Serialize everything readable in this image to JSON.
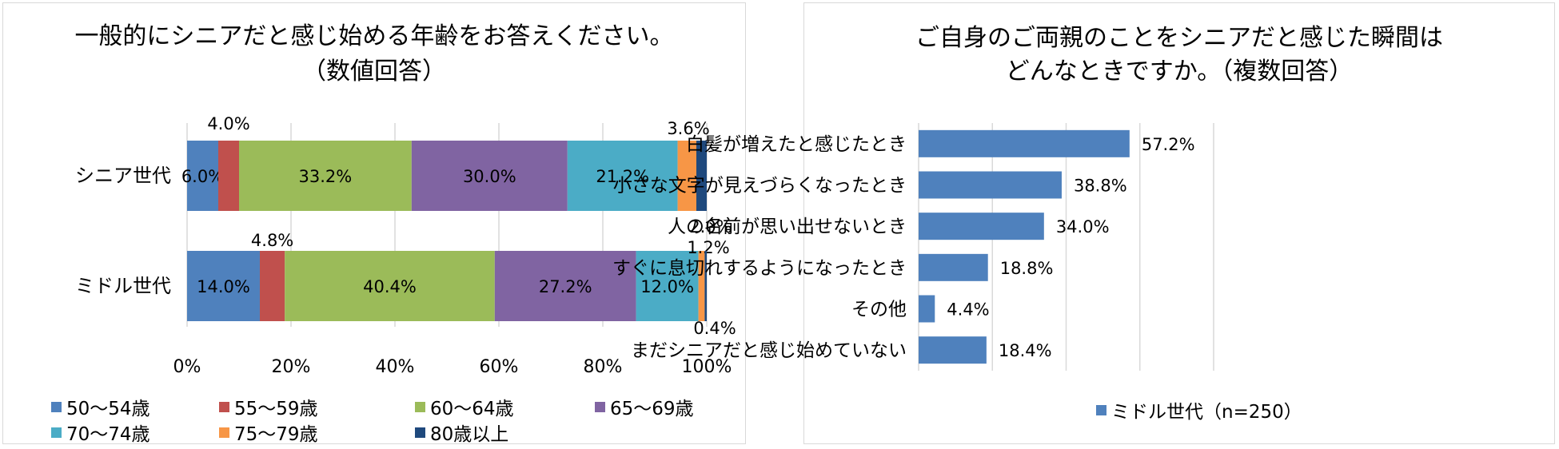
{
  "chart_data": [
    {
      "type": "bar",
      "orientation": "horizontal",
      "stacked": true,
      "title_lines": [
        "一般的にシニアだと感じ始める年齢をお答えください。",
        "（数値回答）"
      ],
      "categories": [
        "シニア世代",
        "ミドル世代"
      ],
      "series": [
        {
          "name": "50～54歳",
          "color": "#4f81bd",
          "values": [
            6.0,
            14.0
          ],
          "labels": [
            "6.0%",
            "14.0%"
          ]
        },
        {
          "name": "55～59歳",
          "color": "#c0504d",
          "values": [
            4.0,
            4.8
          ],
          "labels": [
            "4.0%",
            "4.8%"
          ]
        },
        {
          "name": "60～64歳",
          "color": "#9bbb59",
          "values": [
            33.2,
            40.4
          ],
          "labels": [
            "33.2%",
            "40.4%"
          ]
        },
        {
          "name": "65～69歳",
          "color": "#8064a2",
          "values": [
            30.0,
            27.2
          ],
          "labels": [
            "30.0%",
            "27.2%"
          ]
        },
        {
          "name": "70～74歳",
          "color": "#4bacc6",
          "values": [
            21.2,
            12.0
          ],
          "labels": [
            "21.2%",
            "12.0%"
          ]
        },
        {
          "name": "75～79歳",
          "color": "#f79646",
          "values": [
            3.6,
            1.2
          ],
          "labels": [
            "3.6%",
            "1.2%"
          ]
        },
        {
          "name": "80歳以上",
          "color": "#1f497d",
          "values": [
            2.0,
            0.4
          ],
          "labels": [
            "2.0%",
            "0.4%"
          ]
        }
      ],
      "xlim": [
        0,
        100
      ],
      "x_ticks": [
        "0%",
        "20%",
        "40%",
        "60%",
        "80%",
        "100%"
      ],
      "grid": true,
      "legend_position": "bottom"
    },
    {
      "type": "bar",
      "orientation": "horizontal",
      "title_lines": [
        "ご自身のご両親のことをシニアだと感じた瞬間は",
        "どんなときですか。（複数回答）"
      ],
      "categories": [
        "白髪が増えたと感じたとき",
        "小さな文字が見えづらくなったとき",
        "人の名前が思い出せないとき",
        "すぐに息切れするようになったとき",
        "その他",
        "まだシニアだと感じ始めていない"
      ],
      "series": [
        {
          "name": "ミドル世代（n=250）",
          "color": "#4f81bd",
          "values": [
            57.2,
            38.8,
            34.0,
            18.8,
            4.4,
            18.4
          ],
          "labels": [
            "57.2%",
            "38.8%",
            "34.0%",
            "18.8%",
            "4.4%",
            "18.4%"
          ]
        }
      ],
      "xlim": [
        0,
        80
      ],
      "grid": true,
      "legend_position": "bottom"
    }
  ]
}
